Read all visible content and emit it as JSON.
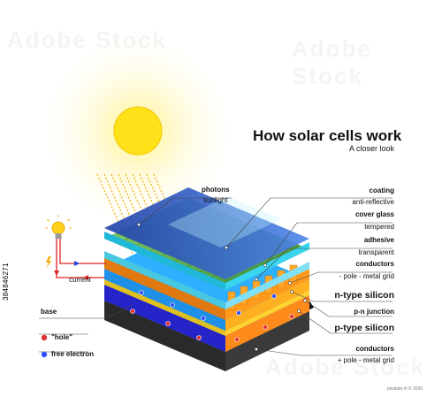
{
  "diagram": {
    "title": "How solar cells work",
    "subtitle": "A closer look",
    "photons": {
      "label": "photons",
      "sub": "sunlight"
    },
    "layers": [
      {
        "label": "coating",
        "sub": "anti-reflective"
      },
      {
        "label": "cover glass",
        "sub": "tempered"
      },
      {
        "label": "adhesive",
        "sub": "transparent"
      },
      {
        "label": "conductors",
        "sub": "- pole - metal grid"
      },
      {
        "label": "n-type silicon",
        "sub": ""
      },
      {
        "label": "p-n junction",
        "sub": ""
      },
      {
        "label": "p-type silicon",
        "sub": ""
      },
      {
        "label": "conductors",
        "sub": "+ pole - metal grid"
      }
    ],
    "current_label": "current",
    "legend": {
      "base": "base",
      "hole": "\"hole\"",
      "electron": "free electron"
    },
    "colors": {
      "sun": "#FFE11A",
      "coating": "#2E5FD0",
      "glass": "#38D4F0",
      "adhesive": "#7FE0F8",
      "grid_panel": "#5FB050",
      "conductor_top": "#FF9A1C",
      "n_type": "#2FB0FF",
      "junction": "#FFD22E",
      "p_type": "#2A2AE0",
      "back_conductor": "#1A1A1A",
      "wire": "#E02020"
    }
  },
  "watermark": "Adobe Stock",
  "credit": "pixabler.nl © 2020",
  "stock_id": "384846271"
}
